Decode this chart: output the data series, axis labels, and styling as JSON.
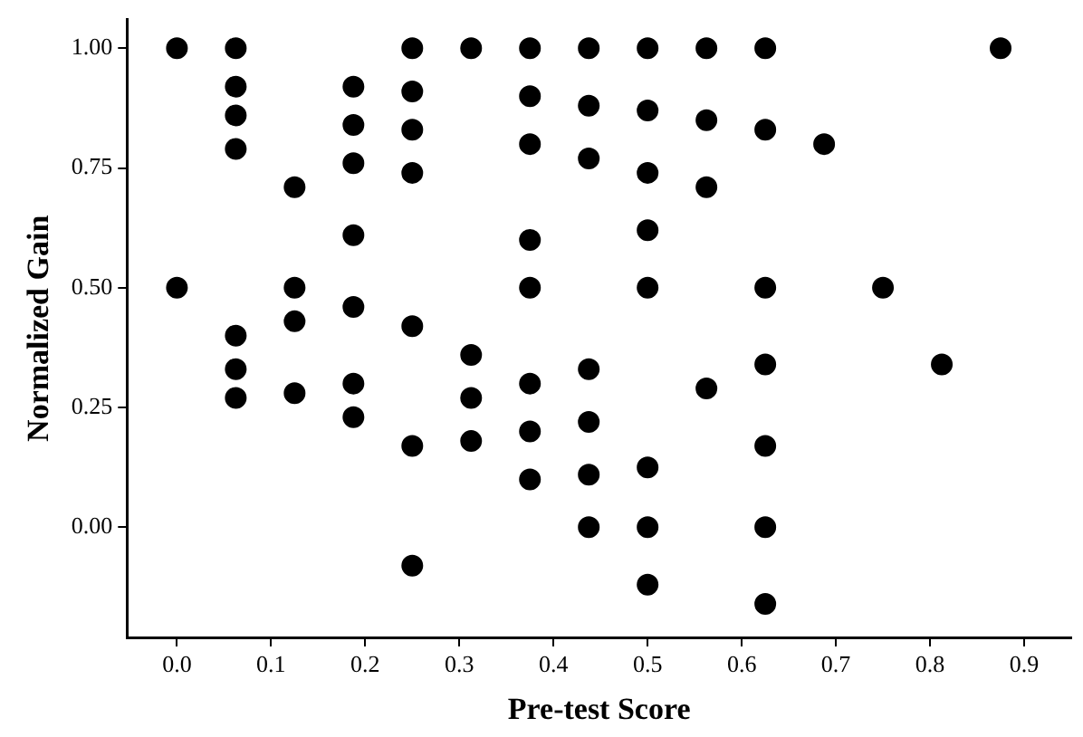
{
  "chart_data": {
    "type": "scatter",
    "xlabel": "Pre-test Score",
    "ylabel": "Normalized Gain",
    "x": [
      0,
      0,
      0.0625,
      0.0625,
      0.0625,
      0.0625,
      0.0625,
      0.0625,
      0.0625,
      0.125,
      0.125,
      0.125,
      0.125,
      0.1875,
      0.1875,
      0.1875,
      0.1875,
      0.1875,
      0.1875,
      0.1875,
      0.25,
      0.25,
      0.25,
      0.25,
      0.25,
      0.25,
      0.25,
      0.3125,
      0.3125,
      0.3125,
      0.3125,
      0.375,
      0.375,
      0.375,
      0.375,
      0.375,
      0.375,
      0.375,
      0.375,
      0.4375,
      0.4375,
      0.4375,
      0.4375,
      0.4375,
      0.4375,
      0.4375,
      0.5,
      0.5,
      0.5,
      0.5,
      0.5,
      0.5,
      0.5,
      0.5,
      0.5625,
      0.5625,
      0.5625,
      0.5625,
      0.625,
      0.625,
      0.625,
      0.625,
      0.625,
      0.625,
      0.625,
      0.6875,
      0.75,
      0.8125,
      0.875
    ],
    "series": [
      {
        "color": "#000000",
        "values": [
          1.0,
          0.5,
          1.0,
          0.92,
          0.86,
          0.79,
          0.4,
          0.33,
          0.27,
          0.71,
          0.5,
          0.43,
          0.28,
          0.92,
          0.84,
          0.76,
          0.61,
          0.46,
          0.3,
          0.23,
          1.0,
          0.91,
          0.83,
          0.74,
          0.42,
          0.17,
          -0.08,
          1.0,
          0.36,
          0.27,
          0.18,
          1.0,
          0.9,
          0.8,
          0.6,
          0.5,
          0.3,
          0.2,
          0.1,
          1.0,
          0.88,
          0.77,
          0.33,
          0.22,
          0.11,
          0.0,
          1.0,
          0.87,
          0.74,
          0.62,
          0.5,
          0.125,
          0.0,
          -0.12,
          1.0,
          0.85,
          0.71,
          0.29,
          1.0,
          0.83,
          0.5,
          0.34,
          0.17,
          0.0,
          -0.16,
          0.8,
          0.5,
          0.34,
          1.0
        ]
      }
    ],
    "marker": "circle",
    "grid": false,
    "legend": false,
    "xlim": [
      -0.053,
      0.95
    ],
    "xticks": [
      {
        "value": 0,
        "label": "0.0"
      },
      0.1,
      0.2,
      0.3,
      0.4,
      0.5,
      0.6,
      0.7,
      0.8,
      0.9
    ],
    "ylim": [
      -0.23,
      1.06
    ],
    "yticks": [
      {
        "value": 0,
        "label": "0.00"
      },
      {
        "value": 0.25,
        "label": "0.25"
      },
      {
        "value": 0.5,
        "label": "0.50"
      },
      {
        "value": 0.75,
        "label": "0.75"
      },
      {
        "value": 1,
        "label": "1.00"
      }
    ]
  }
}
